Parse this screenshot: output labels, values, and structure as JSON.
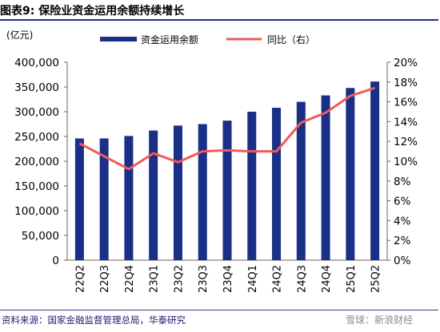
{
  "title": "图表9:  保险业资金运用余额持续增长",
  "source": "资料来源：国家金融监督管理总局，华泰研究",
  "watermark": "雪球：新浪财经",
  "colors": {
    "bar": "#1a2f86",
    "line": "#f05a5a",
    "text": "#000000",
    "axis": "#666666"
  },
  "chart_data": {
    "type": "bar",
    "categories": [
      "22Q2",
      "22Q3",
      "22Q4",
      "23Q1",
      "23Q2",
      "23Q3",
      "23Q4",
      "24Q1",
      "24Q2",
      "24Q3",
      "24Q4",
      "25Q1",
      "25Q2"
    ],
    "left_unit": "(亿元)",
    "left_ylim": [
      0,
      400000
    ],
    "left_ticks": [
      "0",
      "50,000",
      "100,000",
      "150,000",
      "200,000",
      "250,000",
      "300,000",
      "350,000",
      "400,000"
    ],
    "right_ylim": [
      0,
      20
    ],
    "right_ticks": [
      "0%",
      "2%",
      "4%",
      "6%",
      "8%",
      "10%",
      "12%",
      "14%",
      "16%",
      "18%",
      "20%"
    ],
    "series": [
      {
        "name": "资金运用余额",
        "type": "bar",
        "axis": "left",
        "values": [
          246000,
          246000,
          251000,
          262000,
          272000,
          275000,
          282000,
          300000,
          308000,
          320000,
          333000,
          348000,
          361000
        ]
      },
      {
        "name": "同比（右）",
        "type": "line",
        "axis": "right",
        "values": [
          11.8,
          10.5,
          9.2,
          10.8,
          9.9,
          11.0,
          11.1,
          11.0,
          11.0,
          13.9,
          14.9,
          16.6,
          17.4
        ]
      }
    ],
    "legend_position": "top"
  }
}
